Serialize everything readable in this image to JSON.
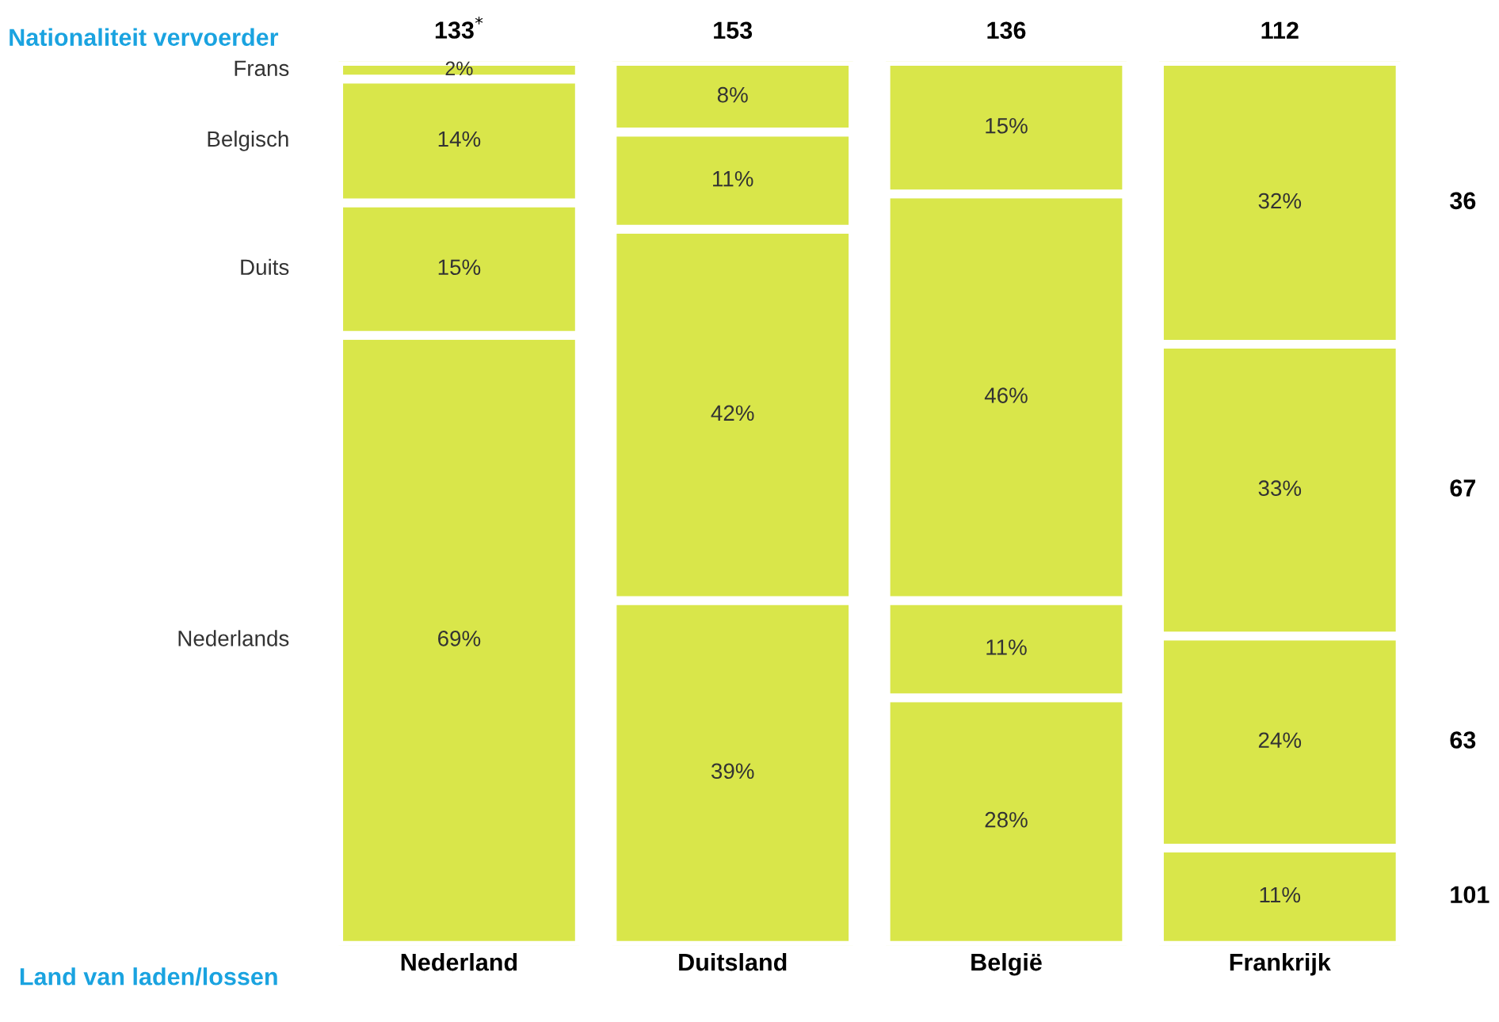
{
  "chart_data": {
    "type": "bar",
    "stacked": true,
    "xlabel": "Land van laden/lossen",
    "ylabel": "Nationaliteit vervoerder",
    "categories": [
      "Nederland",
      "Duitsland",
      "België",
      "Frankrijk"
    ],
    "series": [
      {
        "name": "Nederlands",
        "color": "#d9e64a",
        "values": [
          69,
          39,
          28,
          11
        ],
        "value_labels": [
          "69%",
          "39%",
          "28%",
          "11%"
        ]
      },
      {
        "name": "Duits",
        "color": "#d9e64a",
        "values": [
          15,
          42,
          11,
          24
        ],
        "value_labels": [
          "15%",
          "42%",
          "11%",
          "24%"
        ]
      },
      {
        "name": "Belgisch",
        "color": "#d9e64a",
        "values": [
          14,
          11,
          46,
          33
        ],
        "value_labels": [
          "14%",
          "11%",
          "46%",
          "33%"
        ]
      },
      {
        "name": "Frans",
        "color": "#d9e64a",
        "values": [
          2,
          8,
          15,
          32
        ],
        "value_labels": [
          "2%",
          "8%",
          "15%",
          "32%"
        ]
      }
    ],
    "annotations": [
      "133$^{*}$",
      "153",
      "136",
      "112",
      "36",
      "67",
      "63",
      "101"
    ],
    "tick_labels": "x",
    "legend": false,
    "grid": false
  }
}
